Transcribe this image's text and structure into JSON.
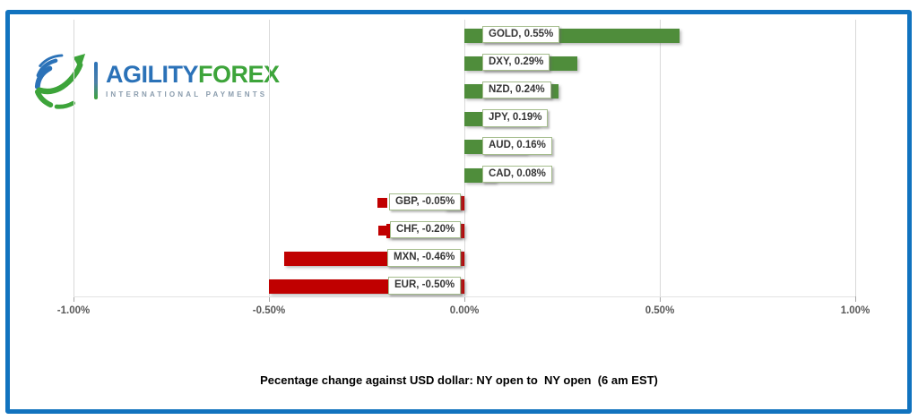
{
  "logo": {
    "brand_part1": "AGILITY",
    "brand_part2": "FOREX",
    "tagline": "INTERNATIONAL PAYMENTS",
    "colors": {
      "agility_blue": "#2B72B8",
      "forex_green": "#3DA43A",
      "tagline_gray": "#8A9CAD"
    }
  },
  "frame": {
    "border_color": "#1173BF"
  },
  "chart_data": {
    "type": "bar",
    "orientation": "horizontal",
    "title": "Pecentage change against USD dollar: NY open to  NY open  (6 am EST)",
    "categories": [
      "GOLD",
      "DXY",
      "NZD",
      "JPY",
      "AUD",
      "CAD",
      "GBP",
      "CHF",
      "MXN",
      "EUR"
    ],
    "values": [
      0.55,
      0.29,
      0.24,
      0.19,
      0.16,
      0.08,
      -0.05,
      -0.2,
      -0.46,
      -0.5
    ],
    "bar_labels": [
      "GOLD, 0.55%",
      "DXY, 0.29%",
      "NZD, 0.24%",
      "JPY, 0.19%",
      "AUD, 0.16%",
      "CAD, 0.08%",
      "GBP, -0.05%",
      "CHF, -0.20%",
      "MXN, -0.46%",
      "EUR, -0.50%"
    ],
    "x_axis": {
      "ticks": [
        {
          "label": "-1.00%",
          "value": -1.0
        },
        {
          "label": "-0.50%",
          "value": -0.5
        },
        {
          "label": "0.00%",
          "value": 0.0
        },
        {
          "label": "0.50%",
          "value": 0.5
        },
        {
          "label": "1.00%",
          "value": 1.0
        }
      ],
      "xlim": [
        -1.0,
        1.0
      ]
    },
    "grid": "vertical-only",
    "legend": "none",
    "positive_color": "#4F8D3B",
    "negative_color": "#C00000",
    "gridline_color": "#D9D9D9",
    "label_box_border_color": "#A5BD8D"
  }
}
